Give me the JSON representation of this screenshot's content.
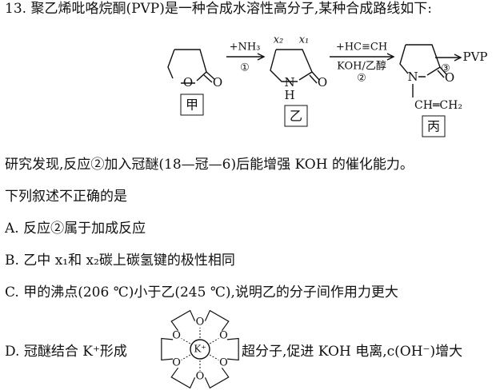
{
  "question": {
    "number": "13.",
    "stem": "聚乙烯吡咯烷酮(PVP)是一种合成水溶性高分子,某种合成路线如下:"
  },
  "scheme": {
    "compounds": [
      {
        "label": "甲",
        "atoms": [
          "O",
          "O"
        ]
      },
      {
        "label": "乙",
        "atoms": [
          "x₂",
          "x₁",
          "N",
          "H",
          "O"
        ]
      },
      {
        "label": "丙",
        "atoms": [
          "N",
          "O",
          "CH═CH₂"
        ]
      }
    ],
    "steps": [
      {
        "reagent": "+NH₃",
        "number": "①"
      },
      {
        "reagent": "+HC≡CH",
        "condition": "KOH/乙醇",
        "number": "②"
      },
      {
        "number": "③",
        "product": "PVP"
      }
    ]
  },
  "finding": "研究发现,反应②加入冠醚(18—冠—6)后能增强 KOH 的催化能力。",
  "prompt": "下列叙述不正确的是",
  "options": [
    {
      "letter": "A.",
      "text": "反应②属于加成反应"
    },
    {
      "letter": "B.",
      "text": "乙中 x₁和 x₂碳上碳氢键的极性相同"
    },
    {
      "letter": "C.",
      "text": "甲的沸点(206 ℃)小于乙(245 ℃),说明乙的分子间作用力更大"
    },
    {
      "letter": "D.",
      "text_before": "冠醚结合 K⁺形成",
      "text_after": "超分子,促进 KOH 电离,c(OH⁻)增大",
      "figure": {
        "center": "K⁺",
        "atoms": [
          "O",
          "O",
          "O",
          "O",
          "O",
          "O"
        ]
      }
    }
  ]
}
